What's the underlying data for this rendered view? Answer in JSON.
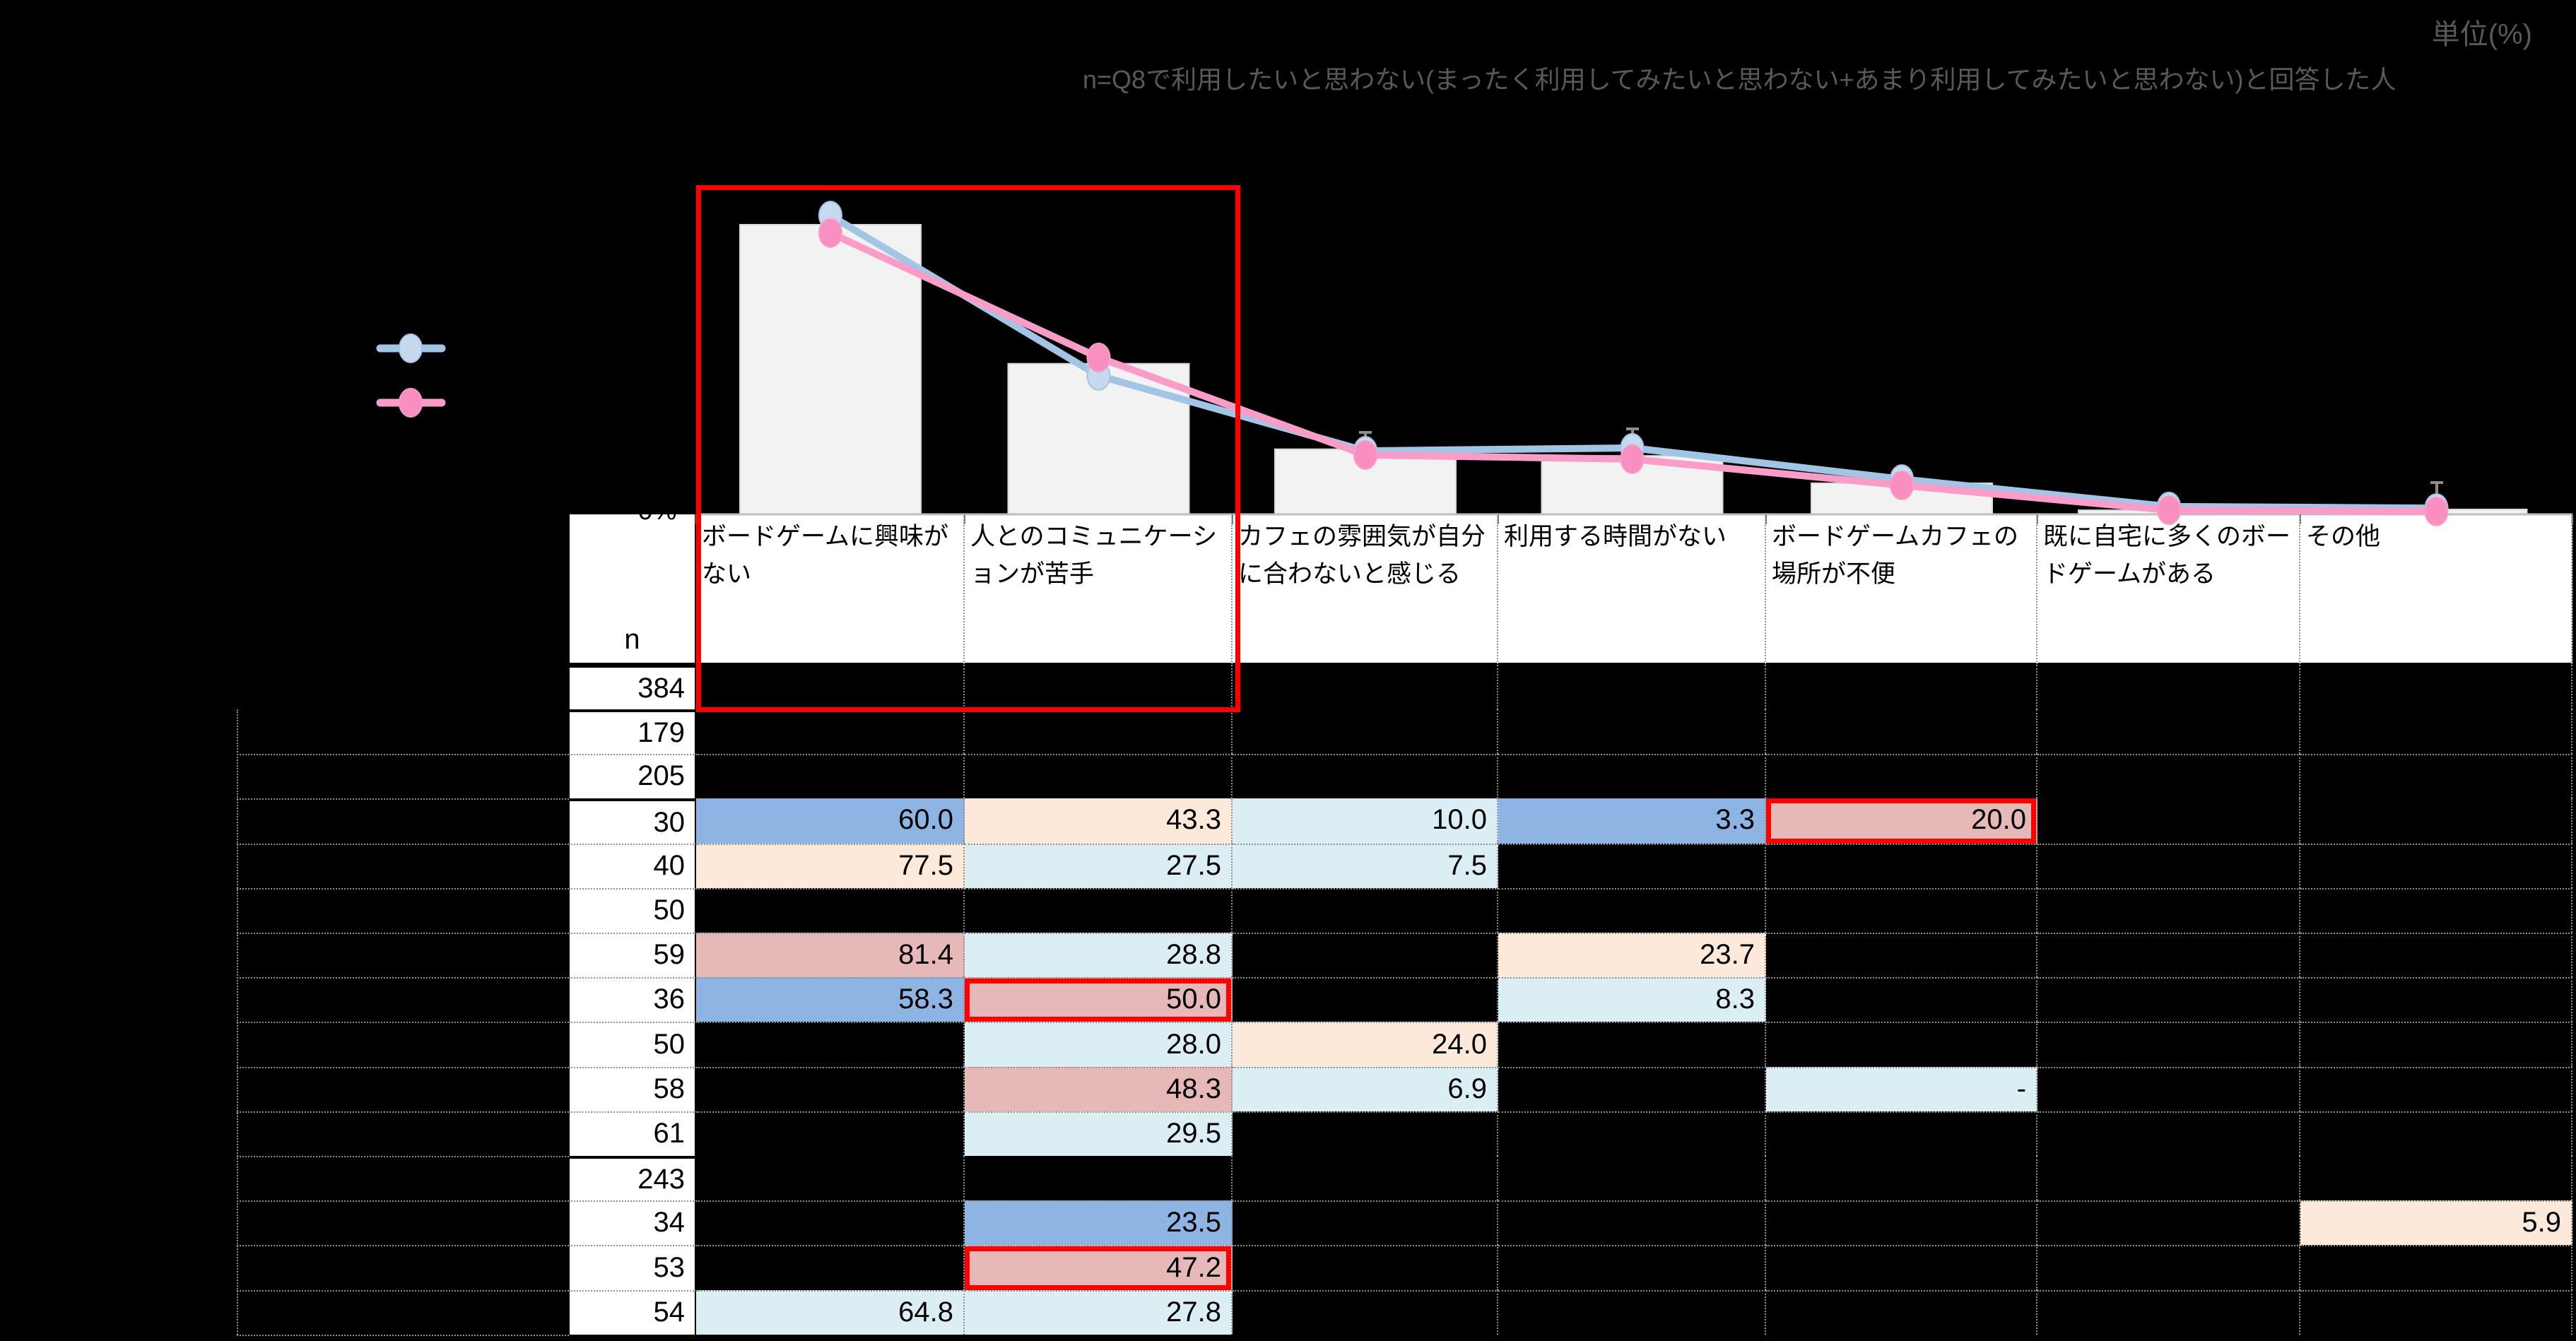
{
  "page": {
    "background": "#000000"
  },
  "header": {
    "unit_note": "単位(%)",
    "sample_note": "n=Q8で利用したいと思わない(まったく利用してみたいと思わない+あまり利用してみたいと思わない)と回答した人"
  },
  "axis": {
    "zero_label": "0%"
  },
  "legend": {
    "entries": [
      {
        "name": "series-blue",
        "line_color": "#a3c5e5",
        "marker_color": "#c6daef"
      },
      {
        "name": "series-pink",
        "line_color": "#fa9cc8",
        "marker_color": "#f98fc0"
      }
    ]
  },
  "chart_data": {
    "type": "bar+line",
    "unit": "%",
    "values_estimated_from_pixels": true,
    "categories": [
      "ボードゲームに興味がない",
      "人とのコミュニケーションが苦手",
      "カフェの雰囲気が自分に合わないと感じる",
      "利用する時間がない",
      "ボードゲームカフェの場所が不便",
      "既に自宅に多くのボードゲームがある",
      "その他"
    ],
    "bar_series": {
      "name": "total-bar",
      "color": "#f2f2f2",
      "values": [
        69.8,
        36.3,
        15.7,
        14.1,
        7.5,
        1.0,
        1.2
      ]
    },
    "line_series": [
      {
        "name": "series-blue",
        "color": "#a3c5e5",
        "values": [
          72.0,
          33.4,
          15.3,
          16.0,
          8.5,
          1.9,
          1.5
        ]
      },
      {
        "name": "series-pink",
        "color": "#fa9cc8",
        "values": [
          67.8,
          37.8,
          14.3,
          13.3,
          7.0,
          1.0,
          0.7
        ]
      }
    ],
    "ylim": [
      0,
      80
    ],
    "y_axis_labels_visible": [
      "0%"
    ],
    "error_bars_at_categories": [
      1,
      3,
      4,
      7
    ],
    "legend_position": "left",
    "grid": false
  },
  "annotations": {
    "highlight_box": {
      "from_category": 0,
      "to_category": 1,
      "color": "#ff0000"
    }
  },
  "table": {
    "n_header": "n",
    "columns": [
      "ボードゲームに興味がない",
      "人とのコミュニケーションが苦手",
      "カフェの雰囲気が自分に合わないと感じる",
      "利用する時間がない",
      "ボードゲームカフェの場所が不便",
      "既に自宅に多くのボードゲームがある",
      "その他"
    ],
    "palette": {
      "blue": "#8db4e2",
      "peach": "#fde9d9",
      "lightblue": "#daeef3",
      "rose": "#e6b8b7"
    },
    "rows": [
      {
        "n": "384",
        "group_start": true,
        "cells": [
          null,
          null,
          null,
          null,
          null,
          null,
          null
        ]
      },
      {
        "n": "179",
        "group_start": true,
        "cells": [
          null,
          null,
          null,
          null,
          null,
          null,
          null
        ]
      },
      {
        "n": "205",
        "group_start": false,
        "cells": [
          null,
          null,
          null,
          null,
          null,
          null,
          null
        ]
      },
      {
        "n": "30",
        "group_start": true,
        "cells": [
          {
            "v": "60.0",
            "bg": "blue"
          },
          {
            "v": "43.3",
            "bg": "peach"
          },
          {
            "v": "10.0",
            "bg": "lightblue"
          },
          {
            "v": "3.3",
            "bg": "blue"
          },
          {
            "v": "20.0",
            "bg": "rose",
            "red": true
          },
          null,
          null
        ]
      },
      {
        "n": "40",
        "group_start": false,
        "cells": [
          {
            "v": "77.5",
            "bg": "peach"
          },
          {
            "v": "27.5",
            "bg": "lightblue"
          },
          {
            "v": "7.5",
            "bg": "lightblue"
          },
          null,
          null,
          null,
          null
        ]
      },
      {
        "n": "50",
        "group_start": false,
        "cells": [
          null,
          null,
          null,
          null,
          null,
          null,
          null
        ]
      },
      {
        "n": "59",
        "group_start": false,
        "cells": [
          {
            "v": "81.4",
            "bg": "rose"
          },
          {
            "v": "28.8",
            "bg": "lightblue"
          },
          null,
          {
            "v": "23.7",
            "bg": "peach"
          },
          null,
          null,
          null
        ]
      },
      {
        "n": "36",
        "group_start": false,
        "cells": [
          {
            "v": "58.3",
            "bg": "blue"
          },
          {
            "v": "50.0",
            "bg": "rose",
            "red": true
          },
          null,
          {
            "v": "8.3",
            "bg": "lightblue"
          },
          null,
          null,
          null
        ]
      },
      {
        "n": "50",
        "group_start": false,
        "cells": [
          null,
          {
            "v": "28.0",
            "bg": "lightblue"
          },
          {
            "v": "24.0",
            "bg": "peach"
          },
          null,
          null,
          null,
          null
        ]
      },
      {
        "n": "58",
        "group_start": false,
        "cells": [
          null,
          {
            "v": "48.3",
            "bg": "rose"
          },
          {
            "v": "6.9",
            "bg": "lightblue"
          },
          null,
          {
            "v": "-",
            "bg": "lightblue"
          },
          null,
          null
        ]
      },
      {
        "n": "61",
        "group_start": false,
        "cells": [
          null,
          {
            "v": "29.5",
            "bg": "lightblue"
          },
          null,
          null,
          null,
          null,
          null
        ]
      },
      {
        "n": "243",
        "group_start": true,
        "cells": [
          null,
          null,
          null,
          null,
          null,
          null,
          null
        ]
      },
      {
        "n": "34",
        "group_start": false,
        "cells": [
          null,
          {
            "v": "23.5",
            "bg": "blue"
          },
          null,
          null,
          null,
          null,
          {
            "v": "5.9",
            "bg": "peach"
          }
        ]
      },
      {
        "n": "53",
        "group_start": false,
        "cells": [
          null,
          {
            "v": "47.2",
            "bg": "rose",
            "red": true
          },
          null,
          null,
          null,
          null,
          null
        ]
      },
      {
        "n": "54",
        "group_start": false,
        "cells": [
          {
            "v": "64.8",
            "bg": "lightblue"
          },
          {
            "v": "27.8",
            "bg": "lightblue"
          },
          null,
          null,
          null,
          null,
          null
        ]
      }
    ]
  }
}
